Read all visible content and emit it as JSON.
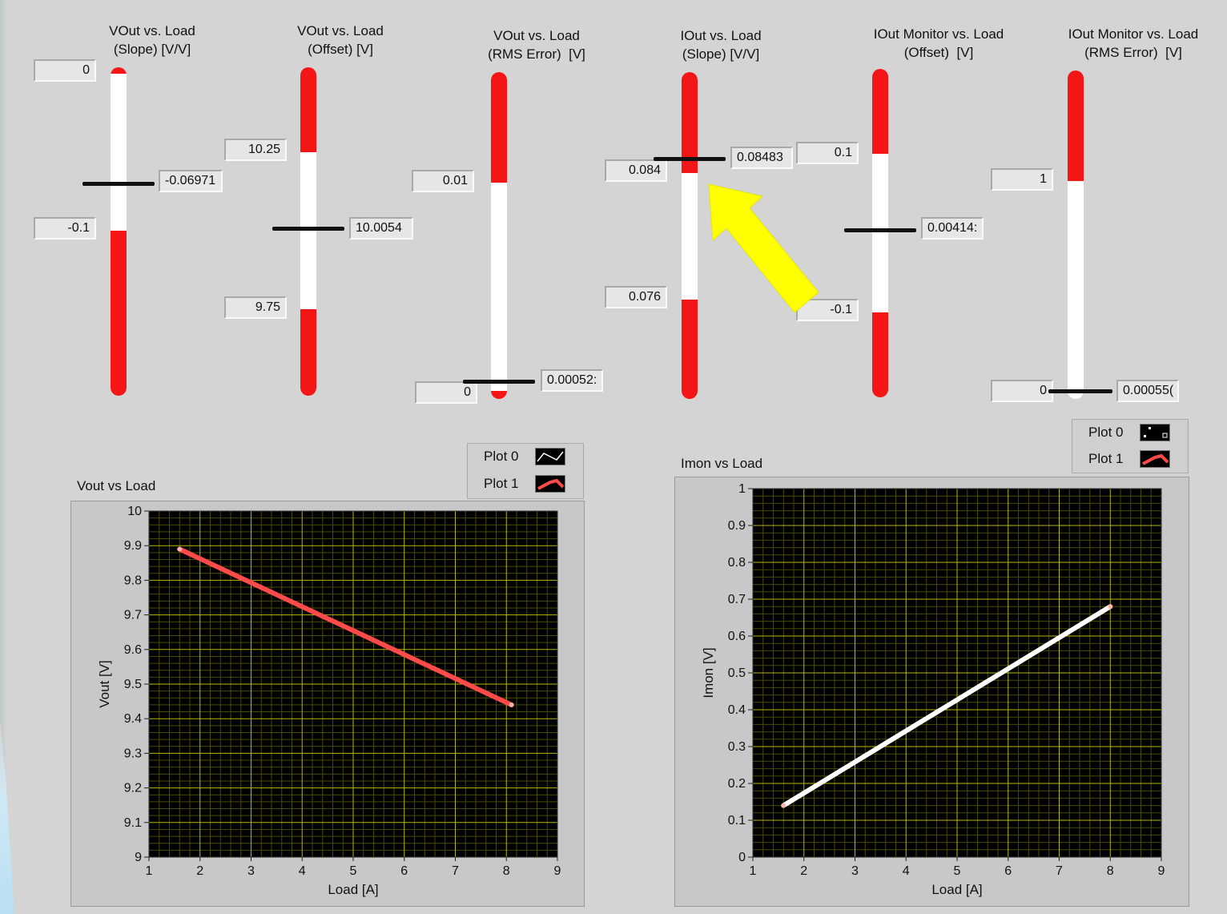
{
  "gauges": [
    {
      "title_line1": "VOut vs. Load",
      "title_line2": "(Slope) [V/V]",
      "upper_limit": "0",
      "lower_limit": "-0.1",
      "value": "-0.06971"
    },
    {
      "title_line1": "VOut vs. Load",
      "title_line2": "(Offset) [V]",
      "upper_limit": "10.25",
      "lower_limit": "9.75",
      "value": "10.0054"
    },
    {
      "title_line1": "VOut vs. Load",
      "title_line2": "(RMS Error)  [V]",
      "upper_limit": "0.01",
      "lower_limit": "0",
      "value": "0.00052:"
    },
    {
      "title_line1": "IOut vs. Load",
      "title_line2": "(Slope) [V/V]",
      "upper_limit": "0.084",
      "lower_limit": "0.076",
      "value": "0.08483"
    },
    {
      "title_line1": "IOut Monitor vs. Load",
      "title_line2": "(Offset)  [V]",
      "upper_limit": "0.1",
      "lower_limit": "-0.1",
      "value": "0.00414:"
    },
    {
      "title_line1": "IOut Monitor vs. Load",
      "title_line2": "(RMS Error)  [V]",
      "upper_limit": "1",
      "lower_limit": "0",
      "value": "0.00055("
    }
  ],
  "annotation": {
    "arrow_color": "#ffff00",
    "points_to": "IOut vs. Load (Slope) needle"
  },
  "colors": {
    "out_of_range": "#f41616",
    "in_range": "#ffffff",
    "plot_bg": "#000000",
    "grid_major": "#b8b800",
    "grid_minor": "#4a4a00"
  },
  "charts": {
    "vout": {
      "title": "Vout vs Load",
      "legend": [
        {
          "label": "Plot 0",
          "icon": "sine-wave-icon"
        },
        {
          "label": "Plot 1",
          "icon": "red-line-icon"
        }
      ],
      "xlabel": "Load [A]",
      "ylabel": "Vout [V]"
    },
    "imon": {
      "title": "Imon vs Load",
      "legend": [
        {
          "label": "Plot 0",
          "icon": "scatter-points-icon"
        },
        {
          "label": "Plot 1",
          "icon": "red-line-icon"
        }
      ],
      "xlabel": "Load [A]",
      "ylabel": "Imon [V]"
    }
  },
  "chart_data": [
    {
      "type": "line",
      "title": "Vout vs Load",
      "xlabel": "Load [A]",
      "ylabel": "Vout [V]",
      "xlim": [
        1,
        9
      ],
      "ylim": [
        9,
        10
      ],
      "x_ticks": [
        "1",
        "2",
        "3",
        "4",
        "5",
        "6",
        "7",
        "8",
        "9"
      ],
      "y_ticks": [
        "9",
        "9.1",
        "9.2",
        "9.3",
        "9.4",
        "9.5",
        "9.6",
        "9.7",
        "9.8",
        "9.9",
        "10"
      ],
      "grid": true,
      "legend_position": "top-right",
      "series": [
        {
          "name": "Plot 1",
          "color": "#ff4a4a",
          "x": [
            1.6,
            8.1
          ],
          "y": [
            9.89,
            9.44
          ]
        }
      ]
    },
    {
      "type": "line",
      "title": "Imon vs Load",
      "xlabel": "Load [A]",
      "ylabel": "Imon [V]",
      "xlim": [
        1,
        9
      ],
      "ylim": [
        0,
        1
      ],
      "x_ticks": [
        "1",
        "2",
        "3",
        "4",
        "5",
        "6",
        "7",
        "8",
        "9"
      ],
      "y_ticks": [
        "0",
        "0.1",
        "0.2",
        "0.3",
        "0.4",
        "0.5",
        "0.6",
        "0.7",
        "0.8",
        "0.9",
        "1"
      ],
      "grid": true,
      "legend_position": "top-right",
      "series": [
        {
          "name": "Plot 0",
          "color": "#ffffff",
          "x": [
            1.6,
            8.0
          ],
          "y": [
            0.14,
            0.68
          ]
        }
      ]
    }
  ]
}
